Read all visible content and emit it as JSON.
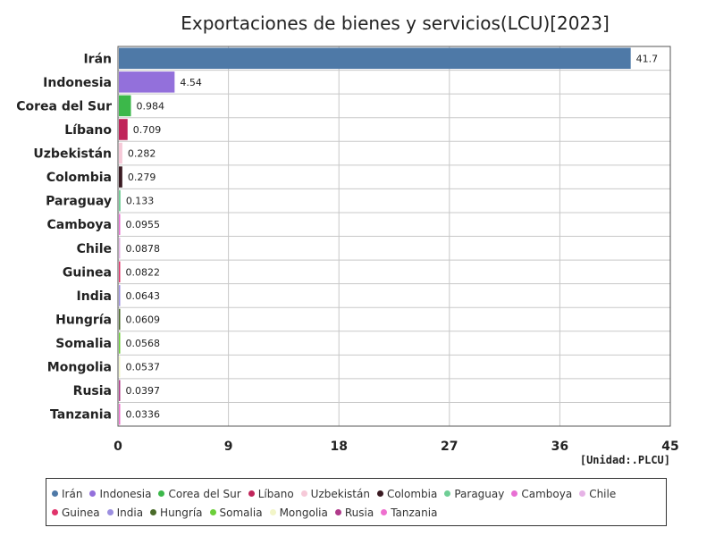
{
  "chart_data": {
    "type": "bar",
    "orientation": "horizontal",
    "title": "Exportaciones de bienes y servicios(LCU)[2023]",
    "unit": "[Unidad:.PLCU]",
    "xlim": [
      0,
      45
    ],
    "xticks": [
      "0",
      "9",
      "18",
      "27",
      "36",
      "45"
    ],
    "grid": true,
    "legend_position": "bottom",
    "categories": [
      "Irán",
      "Indonesia",
      "Corea del Sur",
      "Líbano",
      "Uzbekistán",
      "Colombia",
      "Paraguay",
      "Camboya",
      "Chile",
      "Guinea",
      "India",
      "Hungría",
      "Somalia",
      "Mongolia",
      "Rusia",
      "Tanzania"
    ],
    "values": [
      41.7,
      4.54,
      0.984,
      0.709,
      0.282,
      0.279,
      0.133,
      0.0955,
      0.0878,
      0.0822,
      0.0643,
      0.0609,
      0.0568,
      0.0537,
      0.0397,
      0.0336
    ],
    "value_labels": [
      "41.7",
      "4.54",
      "0.984",
      "0.709",
      "0.282",
      "0.279",
      "0.133",
      "0.0955",
      "0.0878",
      "0.0822",
      "0.0643",
      "0.0609",
      "0.0568",
      "0.0537",
      "0.0397",
      "0.0336"
    ],
    "colors": [
      "#4e79a7",
      "#9370db",
      "#3cb84a",
      "#c0255a",
      "#f6c9d8",
      "#3a1a22",
      "#6fce95",
      "#e86fd3",
      "#e6b3e6",
      "#e0336b",
      "#9c8fe0",
      "#4a6b2a",
      "#6ccf3a",
      "#f2f5c8",
      "#b03a8a",
      "#ee70cf"
    ]
  }
}
